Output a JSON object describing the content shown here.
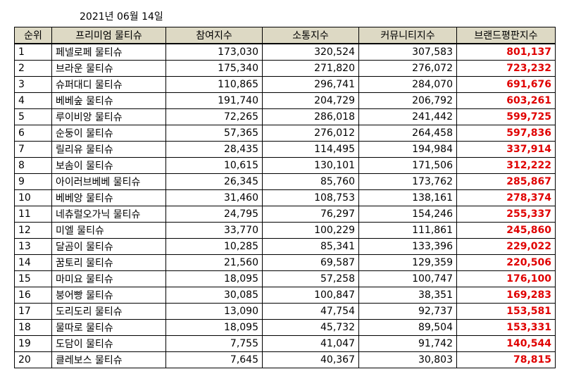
{
  "date": "2021년 06월 14일",
  "columns": [
    "순위",
    "프리미엄 물티슈",
    "참여지수",
    "소통지수",
    "커뮤니티지수",
    "브랜드평판지수"
  ],
  "colors": {
    "header_bg": "#ddd9c4",
    "total_text": "#e00000"
  },
  "rows": [
    {
      "rank": "1",
      "brand": "페넬로페 물티슈",
      "participation": "173,030",
      "communication": "320,524",
      "community": "307,583",
      "reputation": "801,137"
    },
    {
      "rank": "2",
      "brand": "브라운 물티슈",
      "participation": "175,340",
      "communication": "271,820",
      "community": "276,072",
      "reputation": "723,232"
    },
    {
      "rank": "3",
      "brand": "슈퍼대디 물티슈",
      "participation": "110,865",
      "communication": "296,741",
      "community": "284,070",
      "reputation": "691,676"
    },
    {
      "rank": "4",
      "brand": "베베숲 물티슈",
      "participation": "191,740",
      "communication": "204,729",
      "community": "206,792",
      "reputation": "603,261"
    },
    {
      "rank": "5",
      "brand": "루이비앙 물티슈",
      "participation": "72,265",
      "communication": "286,018",
      "community": "241,442",
      "reputation": "599,725"
    },
    {
      "rank": "6",
      "brand": "순둥이 물티슈",
      "participation": "57,365",
      "communication": "276,012",
      "community": "264,458",
      "reputation": "597,836"
    },
    {
      "rank": "7",
      "brand": "릴리유 물티슈",
      "participation": "28,435",
      "communication": "114,495",
      "community": "194,984",
      "reputation": "337,914"
    },
    {
      "rank": "8",
      "brand": "보솜이 물티슈",
      "participation": "10,615",
      "communication": "130,101",
      "community": "171,506",
      "reputation": "312,222"
    },
    {
      "rank": "9",
      "brand": "아이러브베베 물티슈",
      "participation": "26,345",
      "communication": "85,760",
      "community": "173,762",
      "reputation": "285,867"
    },
    {
      "rank": "10",
      "brand": "베베앙 물티슈",
      "participation": "31,460",
      "communication": "108,753",
      "community": "138,161",
      "reputation": "278,374"
    },
    {
      "rank": "11",
      "brand": "네츄럴오가닉 물티슈",
      "participation": "24,795",
      "communication": "76,297",
      "community": "154,246",
      "reputation": "255,337"
    },
    {
      "rank": "12",
      "brand": "미엘 물티슈",
      "participation": "33,770",
      "communication": "100,229",
      "community": "111,861",
      "reputation": "245,860"
    },
    {
      "rank": "13",
      "brand": "달곰이 물티슈",
      "participation": "10,285",
      "communication": "85,341",
      "community": "133,396",
      "reputation": "229,022"
    },
    {
      "rank": "14",
      "brand": "꿈토리 물티슈",
      "participation": "21,560",
      "communication": "69,587",
      "community": "129,359",
      "reputation": "220,506"
    },
    {
      "rank": "15",
      "brand": "마미요 물티슈",
      "participation": "18,095",
      "communication": "57,258",
      "community": "100,747",
      "reputation": "176,100"
    },
    {
      "rank": "16",
      "brand": "붕어빵 물티슈",
      "participation": "30,085",
      "communication": "100,847",
      "community": "38,351",
      "reputation": "169,283"
    },
    {
      "rank": "17",
      "brand": "도리도리 물티슈",
      "participation": "13,090",
      "communication": "47,754",
      "community": "92,737",
      "reputation": "153,581"
    },
    {
      "rank": "18",
      "brand": "물따로 물티슈",
      "participation": "18,095",
      "communication": "45,732",
      "community": "89,504",
      "reputation": "153,331"
    },
    {
      "rank": "19",
      "brand": "도담이 물티슈",
      "participation": "7,755",
      "communication": "41,047",
      "community": "91,742",
      "reputation": "140,544"
    },
    {
      "rank": "20",
      "brand": "클레보스 물티슈",
      "participation": "7,645",
      "communication": "40,367",
      "community": "30,803",
      "reputation": "78,815"
    }
  ]
}
